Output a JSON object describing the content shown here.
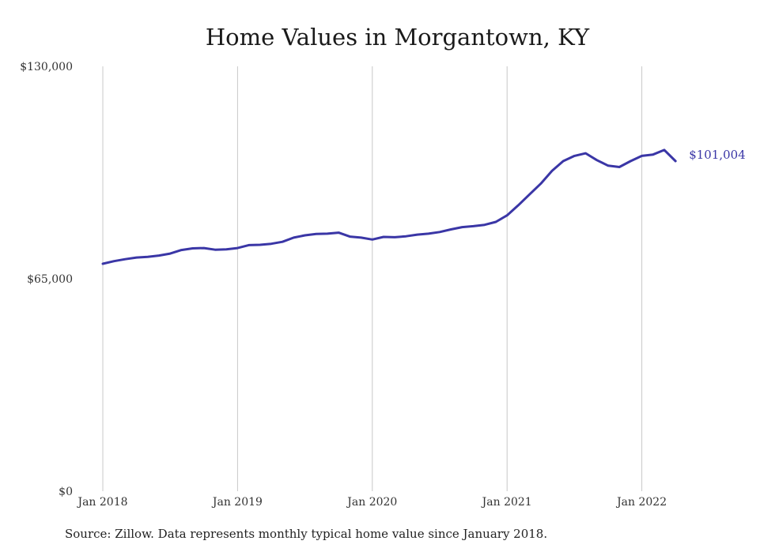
{
  "chart_data": {
    "type": "line",
    "title": "Home Values in Morgantown, KY",
    "xlabel": "",
    "ylabel": "",
    "ylim": [
      0,
      130000
    ],
    "y_ticks": [
      0,
      65000,
      130000
    ],
    "y_tick_labels": [
      "$0",
      "$65,000",
      "$130,000"
    ],
    "x_tick_labels": [
      "Jan 2018",
      "Jan 2019",
      "Jan 2020",
      "Jan 2021",
      "Jan 2022"
    ],
    "x_tick_months": [
      0,
      12,
      24,
      36,
      48
    ],
    "grid": "vertical",
    "line_color": "#3a36a6",
    "end_label": "$101,004",
    "series": [
      {
        "values": [
          69600,
          70400,
          71000,
          71500,
          71700,
          72100,
          72700,
          73800,
          74300,
          74400,
          73900,
          74000,
          74400,
          75300,
          75400,
          75700,
          76300,
          77600,
          78300,
          78700,
          78800,
          79100,
          77900,
          77600,
          77000,
          77800,
          77700,
          78000,
          78500,
          78800,
          79300,
          80100,
          80800,
          81100,
          81500,
          82400,
          84400,
          87500,
          90800,
          94100,
          98000,
          101000,
          102600,
          103400,
          101300,
          99600,
          99200,
          101000,
          102600,
          103000,
          104400,
          101004
        ]
      }
    ]
  },
  "source": "Source: Zillow. Data represents monthly typical home value since January 2018."
}
